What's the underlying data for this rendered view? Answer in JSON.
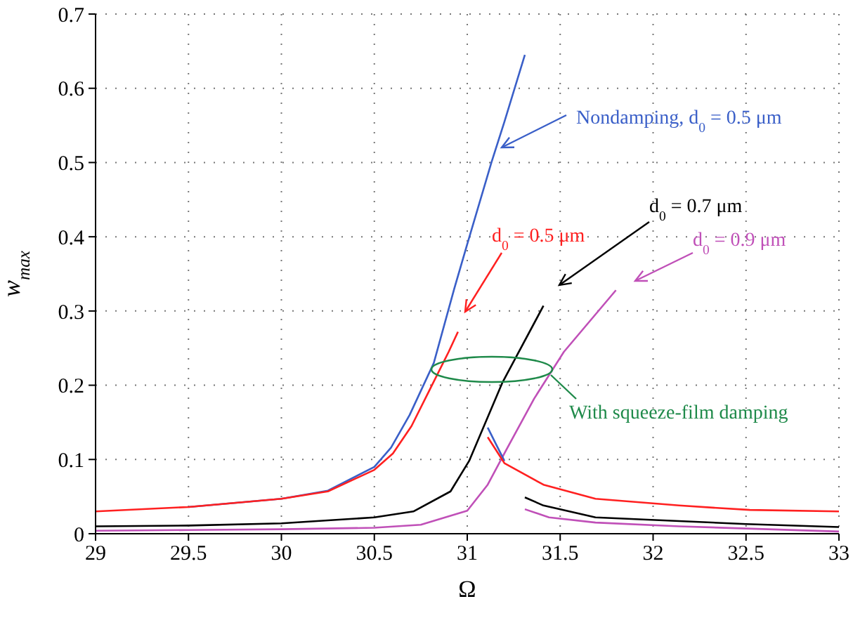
{
  "chart_data": {
    "type": "line",
    "xlabel": "Ω",
    "ylabel": "w$_{max}$",
    "xlim": [
      29,
      33
    ],
    "ylim": [
      0,
      0.7
    ],
    "xticks": [
      29,
      29.5,
      30,
      30.5,
      31,
      31.5,
      32,
      32.5,
      33
    ],
    "yticks": [
      0,
      0.1,
      0.2,
      0.3,
      0.4,
      0.5,
      0.6,
      0.7
    ],
    "grid": true,
    "marker": "none",
    "line_style": "solid",
    "series": [
      {
        "name": "Nondamping, d$_{0}$ = 0.5 μm",
        "color": "#3a5fc8",
        "x": [
          29.5,
          30,
          30.25,
          30.5,
          30.59,
          30.69,
          30.82,
          30.93,
          31.0,
          31.13,
          31.2,
          31.31
        ],
        "values": [
          0.036,
          0.047,
          0.058,
          0.09,
          0.116,
          0.16,
          0.23,
          0.33,
          0.39,
          0.5,
          0.555,
          0.645
        ]
      },
      {
        "name": "d$_{0}$ = 0.5 μm",
        "color": "#ff2020",
        "x": [
          29,
          29.5,
          30,
          30.25,
          30.5,
          30.6,
          30.7,
          30.8,
          30.9,
          30.95
        ],
        "values": [
          0.03,
          0.036,
          0.047,
          0.057,
          0.086,
          0.108,
          0.145,
          0.195,
          0.245,
          0.272
        ]
      },
      {
        "name": "d$_{0}$ = 0.7 μm",
        "color": "#000000",
        "x": [
          29,
          29.5,
          30,
          30.25,
          30.5,
          30.71,
          30.91,
          31.01,
          31.19,
          31.41
        ],
        "values": [
          0.01,
          0.011,
          0.014,
          0.018,
          0.022,
          0.03,
          0.057,
          0.098,
          0.204,
          0.307
        ]
      },
      {
        "name": "d$_{0}$ = 0.9 μm",
        "color": "#c050b8",
        "x": [
          29,
          29.5,
          30,
          30.5,
          30.75,
          31.0,
          31.11,
          31.21,
          31.36,
          31.52,
          31.8
        ],
        "values": [
          0.004,
          0.005,
          0.006,
          0.008,
          0.012,
          0.031,
          0.066,
          0.113,
          0.182,
          0.245,
          0.328
        ]
      },
      {
        "color": "#3a5fc8",
        "x": [
          31.11,
          31.2
        ],
        "values": [
          0.143,
          0.098
        ]
      },
      {
        "color": "#ff2020",
        "x": [
          31.11,
          31.2,
          31.41,
          31.69,
          32.14,
          32.52,
          33
        ],
        "values": [
          0.13,
          0.095,
          0.066,
          0.047,
          0.038,
          0.032,
          0.03
        ]
      },
      {
        "color": "#000000",
        "x": [
          31.31,
          31.41,
          31.69,
          32.14,
          32.5,
          33
        ],
        "values": [
          0.049,
          0.038,
          0.022,
          0.017,
          0.013,
          0.009
        ]
      },
      {
        "color": "#c050b8",
        "x": [
          31.31,
          31.44,
          31.69,
          32.14,
          32.5,
          33
        ],
        "values": [
          0.033,
          0.022,
          0.015,
          0.01,
          0.007,
          0.003
        ]
      }
    ],
    "annotations": [
      "With squeeze-film damping"
    ]
  }
}
